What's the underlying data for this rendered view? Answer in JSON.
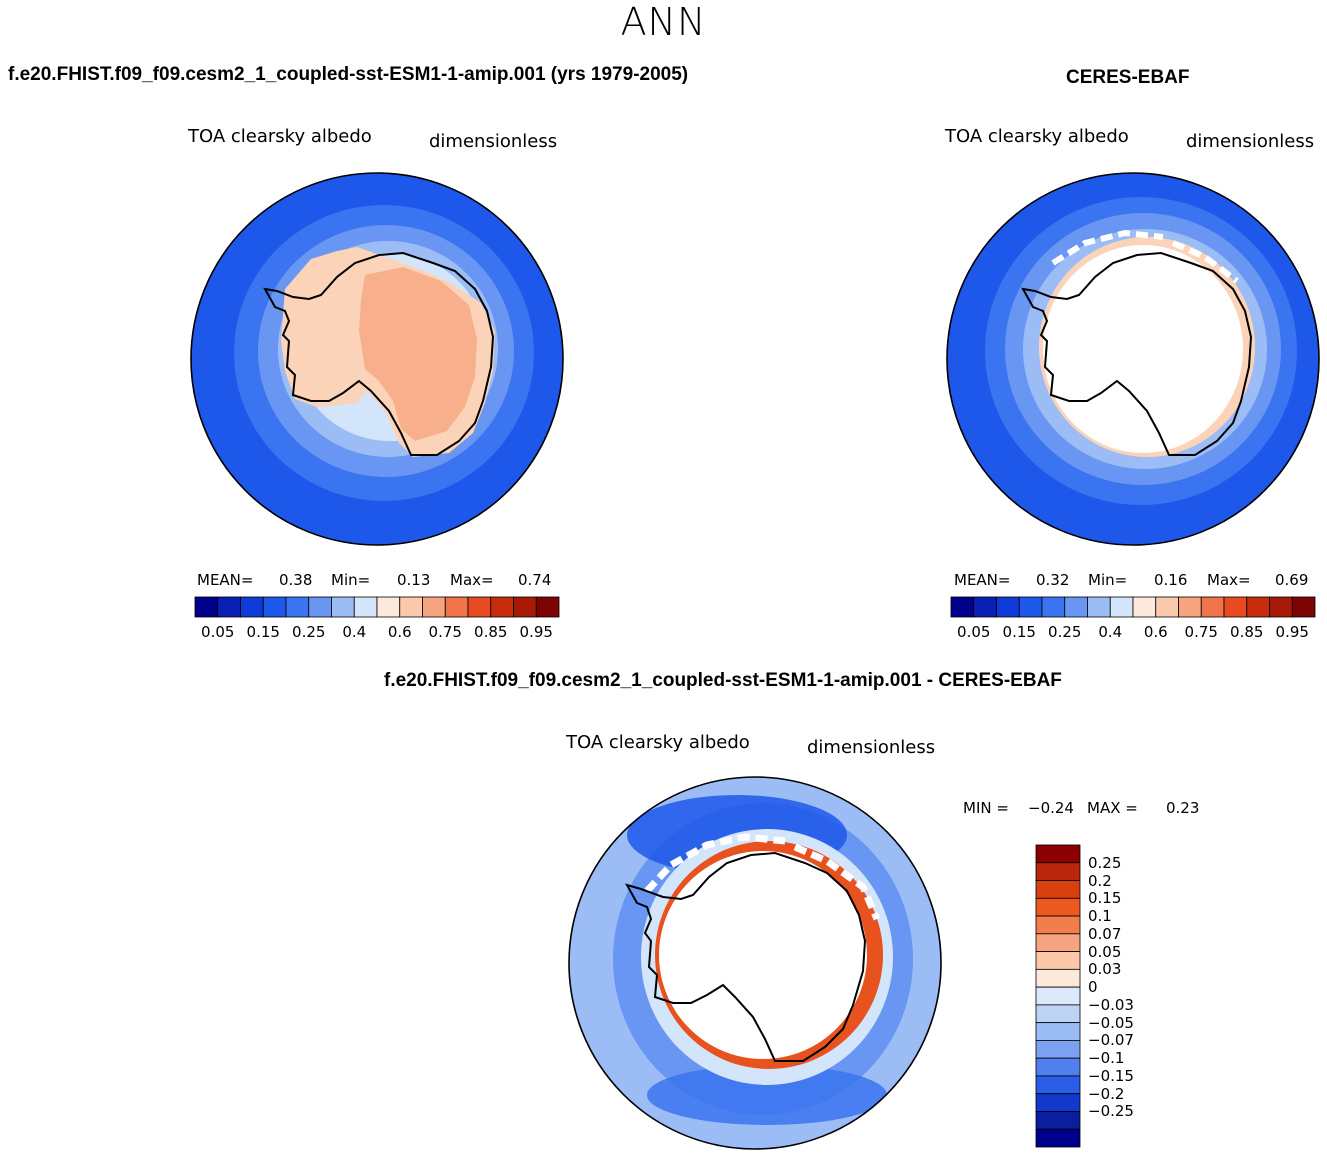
{
  "figure": {
    "title": "ANN"
  },
  "panels": {
    "model": {
      "header": "f.e20.FHIST.f09_f09.cesm2_1_coupled-sst-ESM1-1-amip.001 (yrs 1979-2005)",
      "variable": "TOA clearsky albedo",
      "units": "dimensionless",
      "mean_label": "MEAN=",
      "mean_value": "0.38",
      "min_label": "Min=",
      "min_value": "0.13",
      "max_label": "Max=",
      "max_value": "0.74"
    },
    "obs": {
      "header": "CERES-EBAF",
      "variable": "TOA clearsky albedo",
      "units": "dimensionless",
      "mean_label": "MEAN=",
      "mean_value": "0.32",
      "min_label": "Min=",
      "min_value": "0.16",
      "max_label": "Max=",
      "max_value": "0.69"
    },
    "diff": {
      "header": "f.e20.FHIST.f09_f09.cesm2_1_coupled-sst-ESM1-1-amip.001 - CERES-EBAF",
      "variable": "TOA clearsky albedo",
      "units": "dimensionless",
      "min_label": "MIN =",
      "min_value": "−0.24",
      "max_label": "MAX =",
      "max_value": "0.23"
    }
  },
  "colorbars": {
    "abs": {
      "colors": [
        "#00008b",
        "#0a1fb4",
        "#0f3cd8",
        "#1e58ea",
        "#3b74f0",
        "#6996f2",
        "#9cbcf5",
        "#d2e5fa",
        "#fde9dc",
        "#fbc9ac",
        "#f7a581",
        "#f0734c",
        "#e84a21",
        "#c72d0d",
        "#a81a08",
        "#7e0404"
      ],
      "tick_labels": [
        "0.05",
        "0.15",
        "0.25",
        "0.4",
        "0.6",
        "0.75",
        "0.85",
        "0.95"
      ]
    },
    "diff": {
      "colors": [
        "#8b0000",
        "#b8260c",
        "#d8400f",
        "#ed5a20",
        "#f27e4b",
        "#f7a581",
        "#fbc7a8",
        "#fde8dc",
        "#dbe9fa",
        "#bcd3f6",
        "#9bbcf4",
        "#7aa2f1",
        "#4f80ee",
        "#2a5ee8",
        "#1239cc",
        "#0a1e9e",
        "#00008b"
      ],
      "tick_labels": [
        "0.25",
        "0.2",
        "0.15",
        "0.1",
        "0.07",
        "0.05",
        "0.03",
        "0",
        "−0.03",
        "−0.05",
        "−0.07",
        "−0.1",
        "−0.15",
        "−0.2",
        "−0.25"
      ]
    }
  },
  "map_colors": {
    "ocean_far": "#1e58ea",
    "ocean_mid": "#3b74f0",
    "ocean_light": "#6996f2",
    "ocean_pale": "#9cbcf5",
    "ocean_paler": "#d2e5fa",
    "ice_pale": "#fbd3b9",
    "ice_mid": "#f7b08b",
    "missing": "#ffffff",
    "coast": "#000000",
    "diff_pos": "#e8521f",
    "diff_pos_pale": "#f7a581"
  }
}
